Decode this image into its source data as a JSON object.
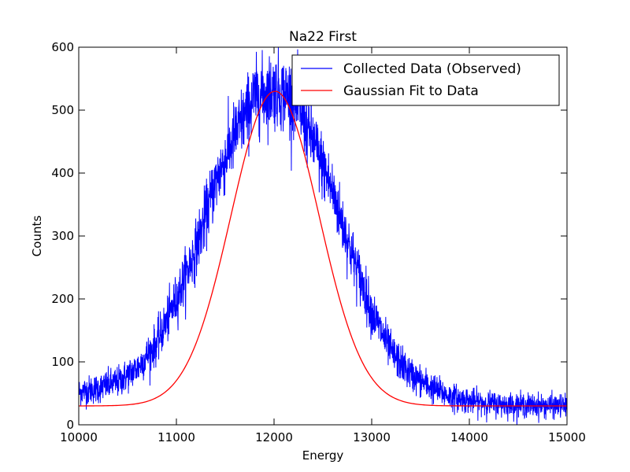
{
  "chart_data": {
    "type": "line",
    "title": "Na22 First",
    "xlabel": "Energy",
    "ylabel": "Counts",
    "xlim": [
      10000,
      15000
    ],
    "ylim": [
      0,
      600
    ],
    "xticks": [
      10000,
      11000,
      12000,
      13000,
      14000,
      15000
    ],
    "yticks": [
      0,
      100,
      200,
      300,
      400,
      500,
      600
    ],
    "grid": false,
    "legend_position": "top-right",
    "series": [
      {
        "name": "Collected Data (Observed)",
        "color": "#0000ff",
        "style": "noisy",
        "x": [
          10000,
          10200,
          10400,
          10600,
          10800,
          11000,
          11200,
          11400,
          11600,
          11800,
          12000,
          12200,
          12400,
          12600,
          12800,
          13000,
          13200,
          13400,
          13600,
          13800,
          14000,
          14200,
          14400,
          14600,
          14800,
          15000
        ],
        "y": [
          52,
          58,
          68,
          90,
          130,
          200,
          280,
          385,
          460,
          520,
          532,
          520,
          450,
          370,
          270,
          180,
          115,
          80,
          60,
          45,
          38,
          34,
          32,
          31,
          30,
          30
        ]
      },
      {
        "name": "Gaussian Fit to Data",
        "color": "#ff0000",
        "style": "smooth",
        "model": {
          "amplitude": 500,
          "mean": 12010,
          "sigma": 450,
          "offset": 30
        }
      }
    ]
  }
}
